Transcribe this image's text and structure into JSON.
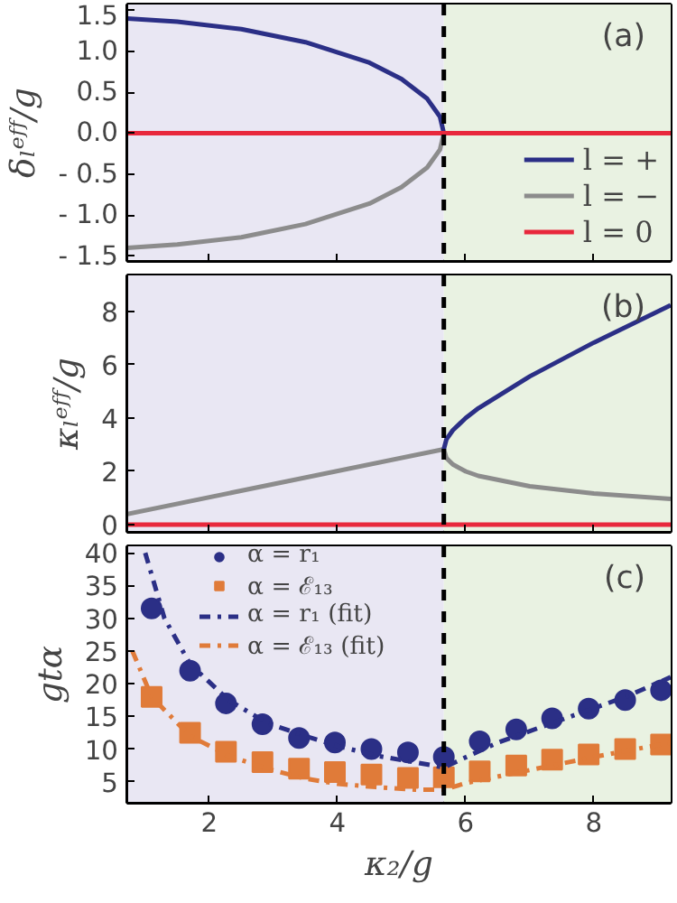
{
  "chart_data": [
    {
      "type": "line",
      "ylabel": "δₗᵉᶠᶠ/g",
      "annotations": [
        "(a)"
      ],
      "xlim": [
        0.72,
        9.2
      ],
      "xticks": [
        2,
        4,
        6,
        8
      ],
      "ylim": [
        -1.56,
        1.57
      ],
      "yticks": [
        {
          "value": -1.5,
          "label": "- 1.5"
        },
        {
          "value": -1.0,
          "label": "- 1.0"
        },
        {
          "value": -0.5,
          "label": "- 0.5"
        },
        "0.0",
        "0.5",
        "1.0",
        "1.5"
      ],
      "tick_labels": "y",
      "legend": "bottom right",
      "bands": [
        {
          "axis": "x",
          "from": 0.72,
          "to": 5.66,
          "color": "#e9e7f3"
        },
        {
          "axis": "x",
          "from": 5.66,
          "to": 9.2,
          "color": "#e9f2e2"
        }
      ],
      "ref_lines": [
        {
          "axis": "x",
          "value": 5.66,
          "color": "#000000",
          "line_style": "dashed"
        }
      ],
      "series": [
        {
          "name": "l = +",
          "color": "#2b2f86",
          "x": [
            0.72,
            1.5,
            2.5,
            3.5,
            4.5,
            5.0,
            5.4,
            5.6,
            5.66
          ],
          "values": [
            1.4,
            1.36,
            1.27,
            1.11,
            0.86,
            0.66,
            0.42,
            0.2,
            0.0
          ]
        },
        {
          "name": "l = −",
          "color": "#8c8c8c",
          "x": [
            0.72,
            1.5,
            2.5,
            3.5,
            4.5,
            5.0,
            5.4,
            5.6,
            5.66
          ],
          "values": [
            -1.4,
            -1.36,
            -1.27,
            -1.11,
            -0.86,
            -0.66,
            -0.42,
            -0.2,
            0.0
          ]
        },
        {
          "name": "l = 0",
          "color": "#e8283c",
          "x": [
            0.72,
            9.2
          ],
          "values": [
            0,
            0
          ]
        }
      ]
    },
    {
      "type": "line",
      "ylabel": "κₗᵉᶠᶠ/g",
      "annotations": [
        "(b)"
      ],
      "xlim": [
        0.72,
        9.2
      ],
      "xticks": [
        2,
        4,
        6,
        8
      ],
      "ylim": [
        -0.27,
        9.35
      ],
      "yticks": [
        0,
        2,
        4,
        6,
        8
      ],
      "tick_labels": "y",
      "bands": [
        {
          "axis": "x",
          "from": 0.72,
          "to": 5.66,
          "color": "#e9e7f3"
        },
        {
          "axis": "x",
          "from": 5.66,
          "to": 9.2,
          "color": "#e9f2e2"
        }
      ],
      "ref_lines": [
        {
          "axis": "x",
          "value": 5.66,
          "color": "#000000",
          "line_style": "dashed"
        }
      ],
      "series": [
        {
          "color": "#8c8c8c",
          "x": [
            0.72,
            5.66,
            5.7,
            5.8,
            6.0,
            6.2,
            7.0,
            8.0,
            9.2
          ],
          "values": [
            0.4,
            2.83,
            2.5,
            2.26,
            2.0,
            1.83,
            1.44,
            1.17,
            0.97
          ]
        },
        {
          "color": "#2b2f86",
          "x": [
            5.66,
            5.7,
            5.8,
            6.0,
            6.2,
            7.0,
            8.0,
            9.2
          ],
          "values": [
            2.83,
            3.2,
            3.54,
            4.0,
            4.37,
            5.56,
            6.83,
            8.23
          ]
        },
        {
          "color": "#e8283c",
          "x": [
            0.72,
            9.2
          ],
          "values": [
            0,
            0
          ]
        }
      ]
    },
    {
      "type": "scatter",
      "xlabel": "κ₂/g",
      "ylabel": "gtα",
      "annotations": [
        "(c)"
      ],
      "xlim": [
        0.72,
        9.2
      ],
      "xticks": [
        2,
        4,
        6,
        8
      ],
      "ylim": [
        1.8,
        41
      ],
      "yticks": [
        5,
        10,
        15,
        20,
        25,
        30,
        35,
        40
      ],
      "legend": "top left",
      "bands": [
        {
          "axis": "x",
          "from": 0.72,
          "to": 5.66,
          "color": "#e9e7f3"
        },
        {
          "axis": "x",
          "from": 5.66,
          "to": 9.2,
          "color": "#e9f2e2"
        }
      ],
      "ref_lines": [
        {
          "axis": "x",
          "value": 5.66,
          "color": "#000000",
          "line_style": "dashed"
        }
      ],
      "series": [
        {
          "name": "α = r₁",
          "color": "#2b2f86",
          "marker": "circle",
          "x": [
            1.1,
            1.7,
            2.26,
            2.83,
            3.4,
            3.96,
            4.53,
            5.1,
            5.66,
            6.22,
            6.79,
            7.35,
            7.92,
            8.49,
            9.05
          ],
          "values": [
            31.5,
            22,
            17,
            13.8,
            11.7,
            11,
            10,
            9.5,
            8.8,
            11.2,
            13,
            14.7,
            16.2,
            17.5,
            19
          ]
        },
        {
          "name": "α = ℰ₁₃",
          "color": "#e07b39",
          "marker": "square",
          "x": [
            1.1,
            1.7,
            2.26,
            2.83,
            3.4,
            3.96,
            4.53,
            5.1,
            5.66,
            6.22,
            6.79,
            7.35,
            7.92,
            8.49,
            9.05
          ],
          "values": [
            18,
            12.5,
            9.6,
            8,
            7,
            6.5,
            6.1,
            5.6,
            5.7,
            6.6,
            7.5,
            8.4,
            9.2,
            10,
            10.7
          ]
        },
        {
          "name": "α = r₁ (fit)",
          "type": "line",
          "line_style": "dashdot",
          "color": "#2b2f86",
          "x": [
            1.0,
            1.3,
            1.7,
            2.3,
            2.9,
            3.5,
            4.0,
            4.6,
            5.2,
            5.66,
            6.5,
            7.5,
            8.5,
            9.2
          ],
          "values": [
            40,
            30,
            23,
            17.5,
            14,
            12,
            10.5,
            9,
            8,
            7.2,
            11,
            14.5,
            18,
            21
          ]
        },
        {
          "name": "α = ℰ₁₃ (fit)",
          "type": "line",
          "line_style": "dashdot",
          "color": "#e07b39",
          "x": [
            0.8,
            1.1,
            1.7,
            2.3,
            2.9,
            3.5,
            4.0,
            4.6,
            5.2,
            5.66,
            6.0,
            7.0,
            8.0,
            9.2
          ],
          "values": [
            25,
            18,
            12,
            9,
            7,
            5.5,
            4.7,
            4.2,
            3.8,
            3.8,
            4.8,
            6.8,
            8.8,
            11
          ]
        }
      ]
    }
  ]
}
